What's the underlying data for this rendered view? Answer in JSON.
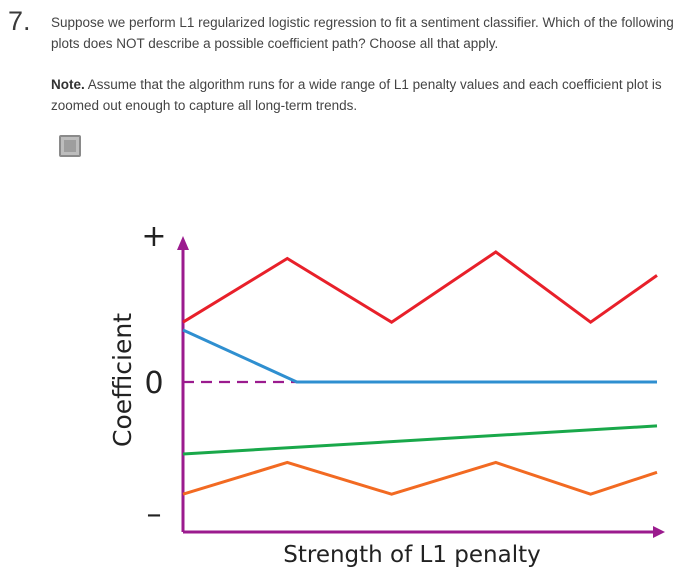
{
  "question": {
    "number": "7.",
    "text": "Suppose we perform L1 regularized logistic regression to fit a sentiment classifier. Which of the following plots does NOT describe a possible coefficient path? Choose all that apply.",
    "note_label": "Note.",
    "note_text": " Assume that the algorithm runs for a wide range of L1 penalty values and each coefficient plot is zoomed out enough to capture all long-term trends."
  },
  "answer_option": {
    "checked": false
  },
  "chart_data": {
    "type": "line",
    "title": "",
    "xlabel": "Strength of L1 penalty",
    "ylabel": "Coefficient",
    "y_tick_labels": [
      "+",
      "0",
      "–"
    ],
    "x_range": [
      0,
      10
    ],
    "y_range": [
      -1,
      1
    ],
    "zero_line_style": "dashed",
    "series": [
      {
        "color": "#e8202a",
        "x": [
          0,
          2.2,
          4.4,
          6.6,
          8.6,
          10
        ],
        "y": [
          0.46,
          0.95,
          0.46,
          1.0,
          0.46,
          0.82
        ]
      },
      {
        "color": "#2f8fd0",
        "x": [
          0,
          2.4,
          10
        ],
        "y": [
          0.4,
          0.0,
          0.0
        ]
      },
      {
        "color": "#19a84a",
        "x": [
          0,
          10
        ],
        "y": [
          -0.59,
          -0.36
        ]
      },
      {
        "color": "#f26a22",
        "x": [
          0,
          2.2,
          4.4,
          6.6,
          8.6,
          10
        ],
        "y": [
          -0.92,
          -0.66,
          -0.92,
          -0.66,
          -0.92,
          -0.74
        ]
      }
    ],
    "colors": {
      "axes": "#9b1b8e",
      "zero_line": "#9b1b8e"
    }
  }
}
